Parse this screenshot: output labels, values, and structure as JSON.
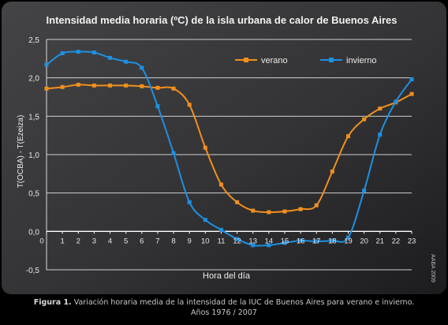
{
  "chart_data": {
    "type": "line",
    "title": "Intensidad media horaria (ºC) de la isla urbana de calor de Buenos Aires",
    "xlabel": "Hora del día",
    "ylabel": "T(OCBA) - T(Ezeiza)",
    "x": [
      0,
      1,
      2,
      3,
      4,
      5,
      6,
      7,
      8,
      9,
      10,
      11,
      12,
      13,
      14,
      15,
      16,
      17,
      18,
      19,
      20,
      21,
      22,
      23
    ],
    "xlim": [
      0,
      23
    ],
    "ylim": [
      -0.5,
      2.5
    ],
    "yticks": [
      "2,5",
      "2,0",
      "1,5",
      "1,0",
      "0,5",
      "0,0",
      "-0,5"
    ],
    "xticks": [
      "1",
      "2",
      "3",
      "4",
      "5",
      "6",
      "7",
      "8",
      "9",
      "10",
      "11",
      "12",
      "13",
      "14",
      "15",
      "16",
      "17",
      "18",
      "19",
      "20",
      "21",
      "22",
      "23"
    ],
    "x_origin_label": "0",
    "grid": true,
    "legend": "top-right",
    "series": [
      {
        "name": "verano",
        "color": "#f0901e",
        "values": [
          1.86,
          1.88,
          1.91,
          1.9,
          1.9,
          1.9,
          1.89,
          1.87,
          1.86,
          1.65,
          1.09,
          0.61,
          0.38,
          0.27,
          0.25,
          0.26,
          0.29,
          0.34,
          0.78,
          1.24,
          1.46,
          1.6,
          1.68,
          1.79
        ]
      },
      {
        "name": "invierno",
        "color": "#1e90e0",
        "values": [
          2.17,
          2.32,
          2.34,
          2.33,
          2.26,
          2.21,
          2.13,
          1.63,
          1.02,
          0.38,
          0.15,
          0.02,
          -0.1,
          -0.18,
          -0.18,
          -0.15,
          -0.12,
          -0.13,
          -0.12,
          -0.08,
          0.53,
          1.26,
          1.69,
          1.98
        ]
      }
    ],
    "credit": "AABA 2009"
  },
  "caption": {
    "label": "Figura 1.",
    "text": " Variación horaria media de la intensidad de la IUC de Buenos Aires para verano e invierno.",
    "line2": "Años 1976 / 2007"
  }
}
